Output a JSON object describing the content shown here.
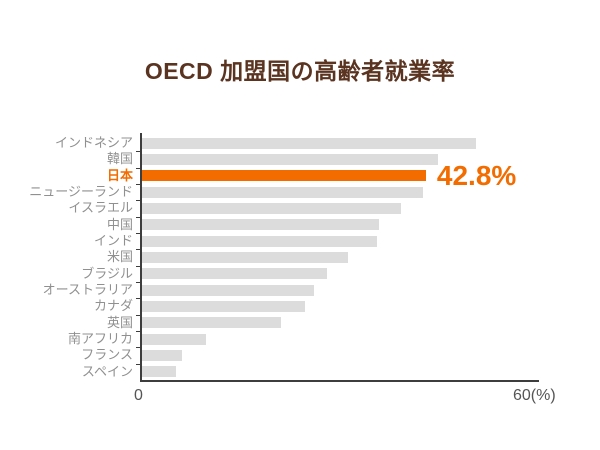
{
  "chart_data": {
    "type": "bar",
    "orientation": "horizontal",
    "title": "OECD 加盟国の高齢者就業率",
    "categories": [
      "インドネシア",
      "韓国",
      "日本",
      "ニュージーランド",
      "イスラエル",
      "中国",
      "インド",
      "米国",
      "ブラジル",
      "オーストラリア",
      "カナダ",
      "英国",
      "南アフリカ",
      "フランス",
      "スペイン"
    ],
    "values": [
      50.4,
      44.6,
      42.8,
      42.3,
      39.0,
      35.7,
      35.5,
      31.0,
      27.9,
      25.9,
      24.6,
      20.9,
      9.6,
      6.0,
      5.1
    ],
    "highlight": {
      "category": "日本",
      "value_label": "42.8%"
    },
    "xlim": [
      0,
      60
    ],
    "x_tick_labels": {
      "start": "0",
      "end": "60(%)"
    },
    "grid": "off",
    "legend": "none",
    "colors": {
      "bar": "#dcdcdc",
      "highlight": "#f26c00",
      "title": "#5a3420",
      "category_label": "#909090",
      "axis": "#3d3d3d",
      "tick_label": "#555555"
    }
  }
}
